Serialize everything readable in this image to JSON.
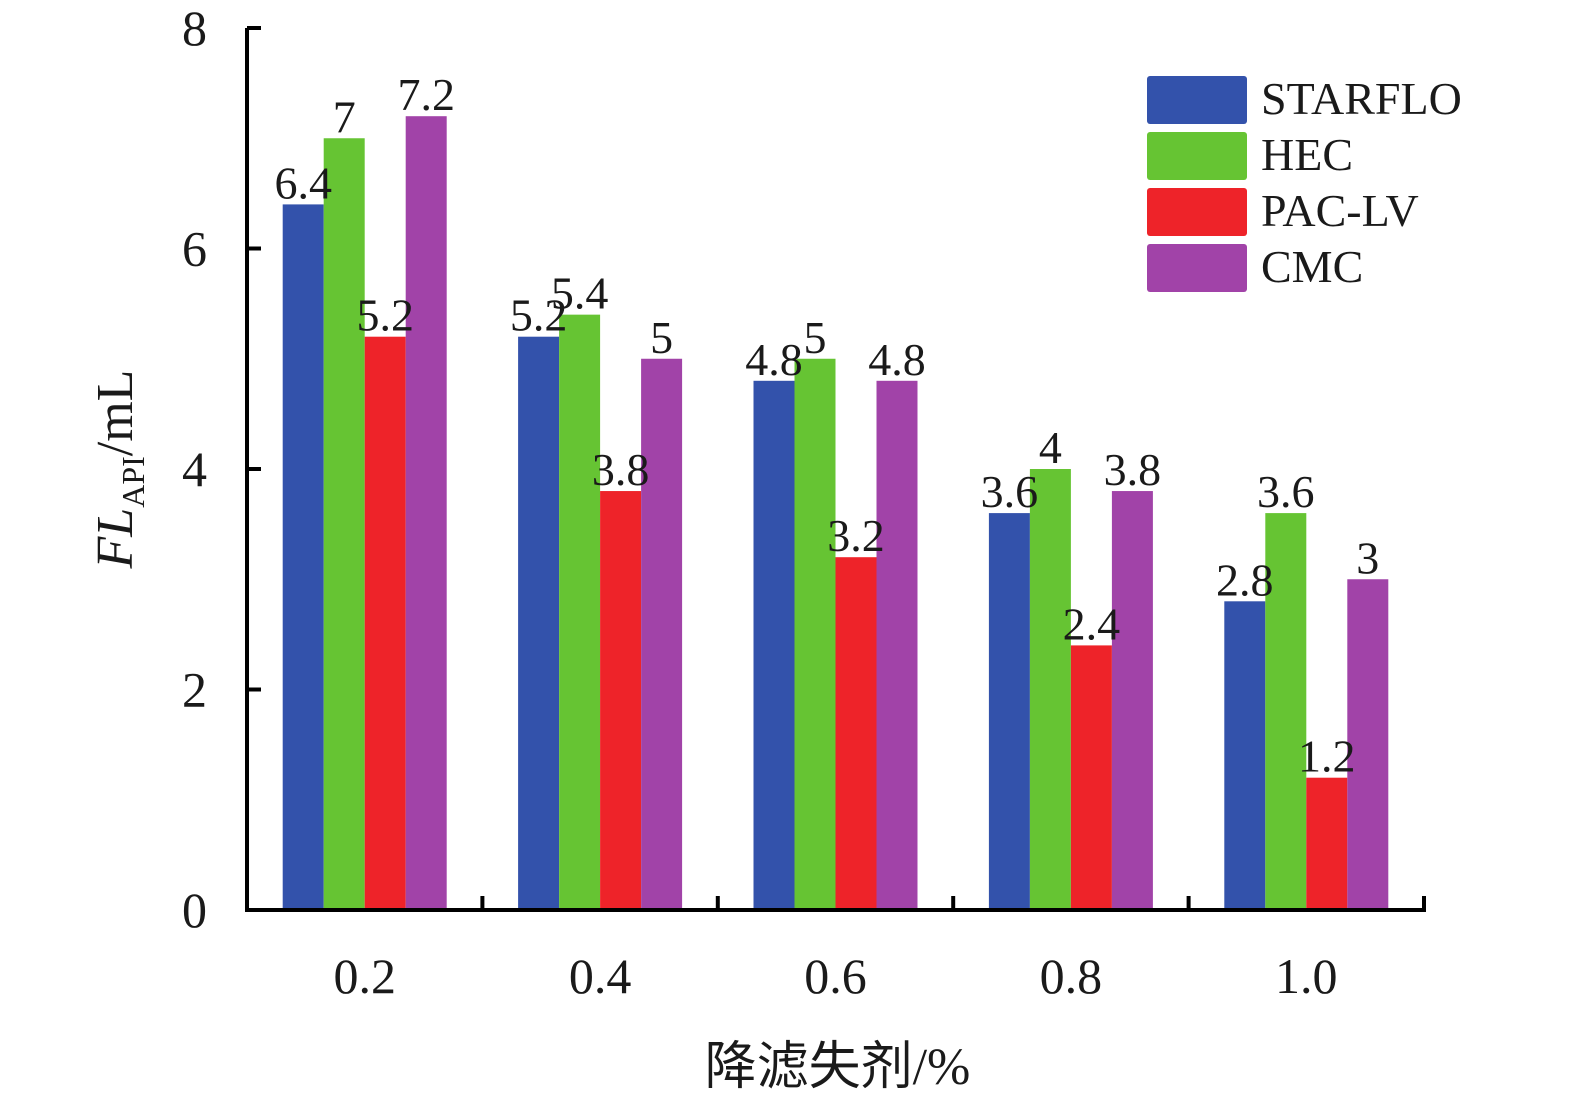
{
  "chart_data": {
    "type": "bar",
    "title": "",
    "xlabel": "降滤失剂/%",
    "ylabel": {
      "main": "FL",
      "subscript": "API",
      "unit": "/mL"
    },
    "categories": [
      "0.2",
      "0.4",
      "0.6",
      "0.8",
      "1.0"
    ],
    "ylim": [
      0,
      8
    ],
    "yticks": [
      "0",
      "2",
      "4",
      "6",
      "8"
    ],
    "grid": false,
    "legend_position": "top-right",
    "series": [
      {
        "name": "STARFLO",
        "color": "#3352ab",
        "values": [
          6.4,
          5.2,
          4.8,
          3.6,
          2.8
        ]
      },
      {
        "name": "HEC",
        "color": "#66c433",
        "values": [
          7,
          5.4,
          5,
          4,
          3.6
        ]
      },
      {
        "name": "PAC-LV",
        "color": "#ee2329",
        "values": [
          5.2,
          3.8,
          3.2,
          2.4,
          1.2
        ]
      },
      {
        "name": "CMC",
        "color": "#a143a8",
        "values": [
          7.2,
          5,
          4.8,
          3.8,
          3
        ]
      }
    ]
  }
}
